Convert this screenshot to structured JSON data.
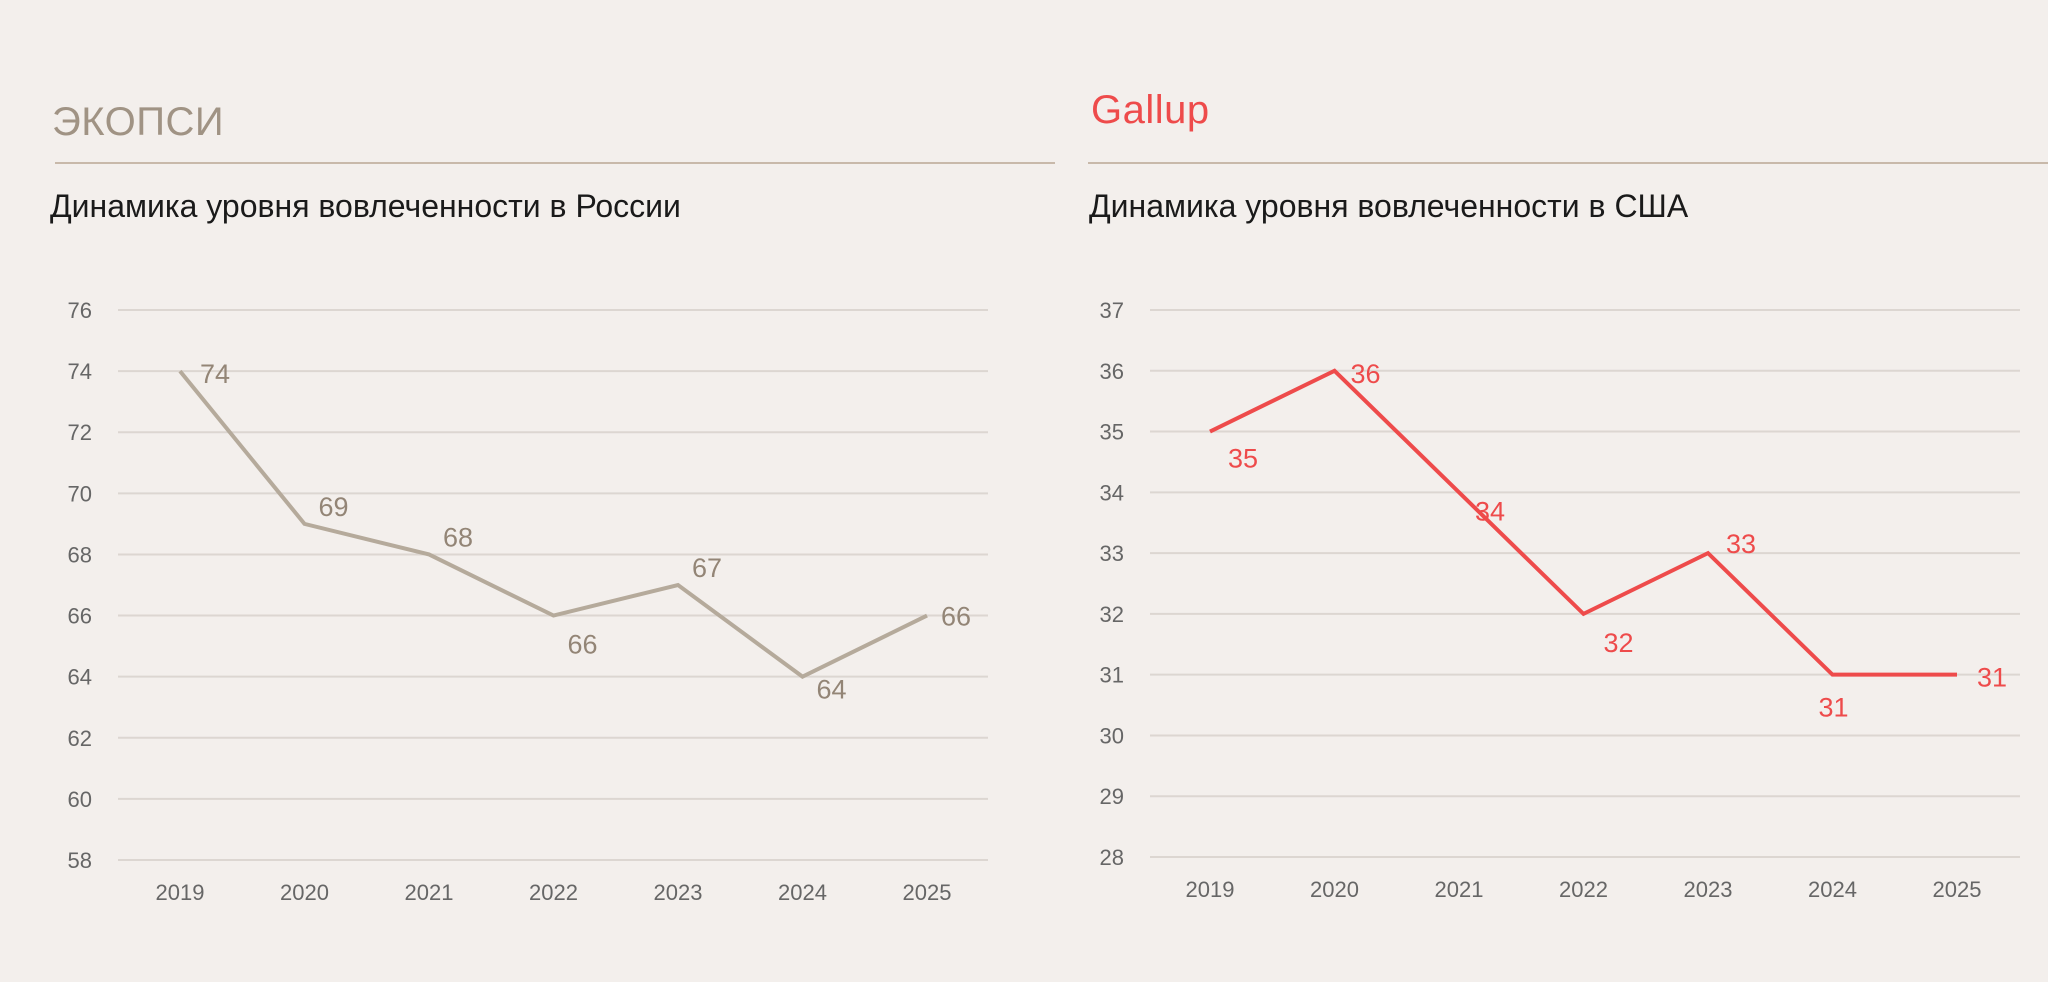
{
  "colors": {
    "left_accent": "#a09384",
    "left_line": "#b5aa9b",
    "right_accent": "#ee4b4b",
    "grid": "#dcd6d1"
  },
  "left": {
    "brand": "ЭКОПСИ",
    "subtitle": "Динамика уровня вовлеченности в России"
  },
  "right": {
    "brand": "Gallup",
    "subtitle": "Динамика уровня вовлеченности в США"
  },
  "chart_data": [
    {
      "type": "line",
      "title": "Динамика уровня вовлеченности в России",
      "categories": [
        "2019",
        "2020",
        "2021",
        "2022",
        "2023",
        "2024",
        "2025"
      ],
      "values": [
        74,
        69,
        68,
        66,
        67,
        64,
        66
      ],
      "ylim": [
        58,
        76
      ],
      "yticks": [
        58,
        60,
        62,
        64,
        66,
        68,
        70,
        72,
        74,
        76
      ],
      "grid": true
    },
    {
      "type": "line",
      "title": "Динамика уровня вовлеченности в США",
      "categories": [
        "2019",
        "2020",
        "2021",
        "2022",
        "2023",
        "2024",
        "2025"
      ],
      "values": [
        35,
        36,
        34,
        32,
        33,
        31,
        31
      ],
      "ylim": [
        28,
        37
      ],
      "yticks": [
        28,
        29,
        30,
        31,
        32,
        33,
        34,
        35,
        36,
        37
      ],
      "grid": true
    }
  ]
}
